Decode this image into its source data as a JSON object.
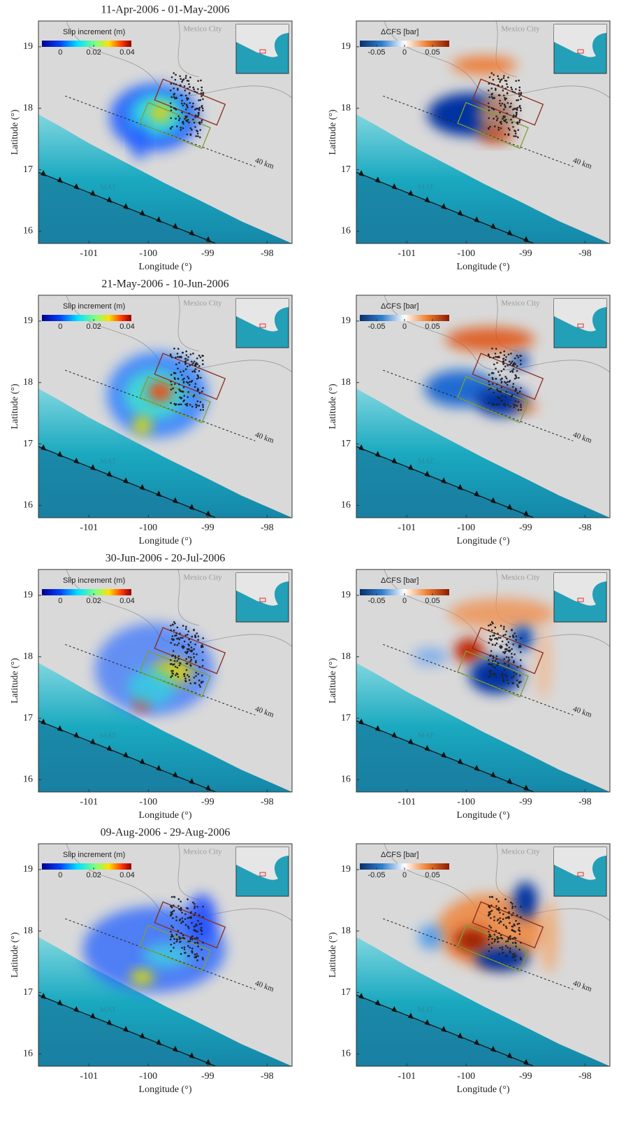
{
  "chart_data": [
    {
      "type": "heatmap",
      "title": "11-Apr-2006 - 01-May-2006",
      "xlabel": "Longitude (°)",
      "ylabel": "Latitude (°)",
      "xlim": [
        -101.85,
        -97.58
      ],
      "ylim": [
        15.8,
        19.42
      ],
      "xticks": [
        -101,
        -100,
        -99,
        -98
      ],
      "yticks": [
        16,
        17,
        18,
        19
      ],
      "colorbar": {
        "label": "Slip increment (m)",
        "colormap": "jet",
        "lim": [
          -0.011,
          0.0425
        ],
        "ticks": [
          0,
          0.02,
          0.04
        ]
      },
      "annotations": [
        "Mexico City",
        "MAT",
        "40 km"
      ]
    },
    {
      "type": "heatmap",
      "xlabel": "Longitude (°)",
      "ylabel": "Latitude (°)",
      "xlim": [
        -101.85,
        -97.58
      ],
      "ylim": [
        15.8,
        19.42
      ],
      "xticks": [
        -101,
        -100,
        -99,
        -98
      ],
      "yticks": [
        16,
        17,
        18,
        19
      ],
      "colorbar": {
        "label": "ΔCFS [bar]",
        "colormap": "diverging",
        "lim": [
          -0.08,
          0.08
        ],
        "ticks": [
          -0.05,
          0,
          0.05
        ]
      },
      "annotations": [
        "Mexico City",
        "MAT",
        "40 km"
      ]
    },
    {
      "type": "heatmap",
      "title": "21-May-2006 - 10-Jun-2006",
      "xlabel": "Longitude (°)",
      "ylabel": "Latitude (°)",
      "xlim": [
        -101.85,
        -97.58
      ],
      "ylim": [
        15.8,
        19.42
      ],
      "xticks": [
        -101,
        -100,
        -99,
        -98
      ],
      "yticks": [
        16,
        17,
        18,
        19
      ],
      "colorbar": {
        "label": "Slip increment (m)",
        "colormap": "jet",
        "lim": [
          -0.011,
          0.0425
        ],
        "ticks": [
          0,
          0.02,
          0.04
        ]
      },
      "annotations": [
        "Mexico City",
        "MAT",
        "40 km"
      ]
    },
    {
      "type": "heatmap",
      "xlabel": "Longitude (°)",
      "ylabel": "Latitude (°)",
      "xlim": [
        -101.85,
        -97.58
      ],
      "ylim": [
        15.8,
        19.42
      ],
      "xticks": [
        -101,
        -100,
        -99,
        -98
      ],
      "yticks": [
        16,
        17,
        18,
        19
      ],
      "colorbar": {
        "label": "ΔCFS [bar]",
        "colormap": "diverging",
        "lim": [
          -0.08,
          0.08
        ],
        "ticks": [
          -0.05,
          0,
          0.05
        ]
      },
      "annotations": [
        "Mexico City",
        "MAT",
        "40 km"
      ]
    },
    {
      "type": "heatmap",
      "title": "30-Jun-2006 - 20-Jul-2006",
      "xlabel": "Longitude (°)",
      "ylabel": "Latitude (°)",
      "xlim": [
        -101.85,
        -97.58
      ],
      "ylim": [
        15.8,
        19.42
      ],
      "xticks": [
        -101,
        -100,
        -99,
        -98
      ],
      "yticks": [
        16,
        17,
        18,
        19
      ],
      "colorbar": {
        "label": "Slip increment (m)",
        "colormap": "jet",
        "lim": [
          -0.011,
          0.0425
        ],
        "ticks": [
          0,
          0.02,
          0.04
        ]
      },
      "annotations": [
        "Mexico City",
        "MAT",
        "40 km"
      ]
    },
    {
      "type": "heatmap",
      "xlabel": "Longitude (°)",
      "ylabel": "Latitude (°)",
      "xlim": [
        -101.85,
        -97.58
      ],
      "ylim": [
        15.8,
        19.42
      ],
      "xticks": [
        -101,
        -100,
        -99,
        -98
      ],
      "yticks": [
        16,
        17,
        18,
        19
      ],
      "colorbar": {
        "label": "ΔCFS [bar]",
        "colormap": "diverging",
        "lim": [
          -0.08,
          0.08
        ],
        "ticks": [
          -0.05,
          0,
          0.05
        ]
      },
      "annotations": [
        "Mexico City",
        "MAT",
        "40 km"
      ]
    },
    {
      "type": "heatmap",
      "title": "09-Aug-2006 - 29-Aug-2006",
      "xlabel": "Longitude (°)",
      "ylabel": "Latitude (°)",
      "xlim": [
        -101.85,
        -97.58
      ],
      "ylim": [
        15.8,
        19.42
      ],
      "xticks": [
        -101,
        -100,
        -99,
        -98
      ],
      "yticks": [
        16,
        17,
        18,
        19
      ],
      "colorbar": {
        "label": "Slip increment (m)",
        "colormap": "jet",
        "lim": [
          -0.011,
          0.0425
        ],
        "ticks": [
          0,
          0.02,
          0.04
        ]
      },
      "annotations": [
        "Mexico City",
        "MAT",
        "40 km"
      ]
    },
    {
      "type": "heatmap",
      "xlabel": "Longitude (°)",
      "ylabel": "Latitude (°)",
      "xlim": [
        -101.85,
        -97.58
      ],
      "ylim": [
        15.8,
        19.42
      ],
      "xticks": [
        -101,
        -100,
        -99,
        -98
      ],
      "yticks": [
        16,
        17,
        18,
        19
      ],
      "colorbar": {
        "label": "ΔCFS [bar]",
        "colormap": "diverging",
        "lim": [
          -0.08,
          0.08
        ],
        "ticks": [
          -0.05,
          0,
          0.05
        ]
      },
      "annotations": [
        "Mexico City",
        "MAT",
        "40 km"
      ]
    }
  ]
}
